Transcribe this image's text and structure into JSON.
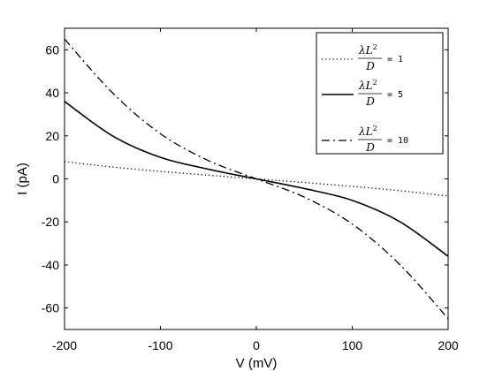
{
  "chart_data": {
    "type": "line",
    "title": "",
    "xlabel": "V (mV)",
    "ylabel": "I (pA)",
    "xlim": [
      -200,
      200
    ],
    "ylim": [
      -70,
      70
    ],
    "xticks": [
      -200,
      -100,
      0,
      100,
      200
    ],
    "yticks": [
      -60,
      -40,
      -20,
      0,
      20,
      40,
      60
    ],
    "grid": false,
    "legend_position": "top-right",
    "legend_label_text": {
      "numerator_symbol": "λ",
      "numerator_var": "L",
      "numerator_exp": "2",
      "denominator_var": "D",
      "equals": "="
    },
    "x": [
      -200,
      -150,
      -100,
      -50,
      0,
      50,
      100,
      150,
      200
    ],
    "series": [
      {
        "value_label": "1",
        "style": "dotted",
        "values": [
          8,
          5.5,
          3.5,
          1.7,
          0,
          -1.7,
          -3.5,
          -5.5,
          -8
        ]
      },
      {
        "value_label": "5",
        "style": "solid",
        "values": [
          36,
          20,
          10,
          4.5,
          0,
          -4.5,
          -10,
          -20,
          -36
        ]
      },
      {
        "value_label": "10",
        "style": "dashdot",
        "values": [
          65,
          40,
          21,
          8.5,
          0,
          -8.5,
          -21,
          -40,
          -65
        ]
      }
    ]
  }
}
